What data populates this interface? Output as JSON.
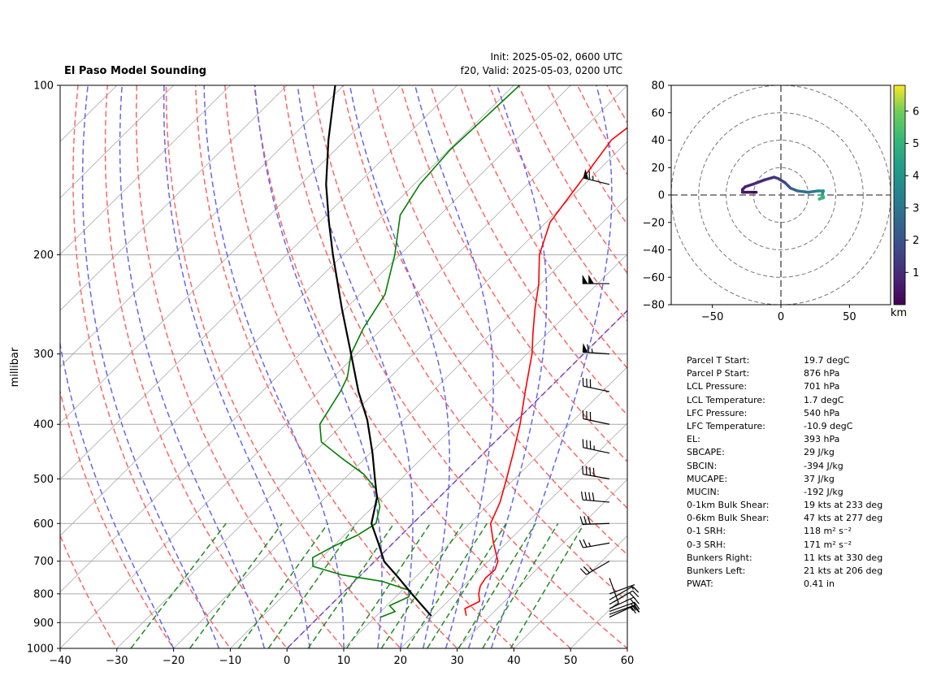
{
  "title_left": "El Paso Model Sounding",
  "title_right_line1": "Init: 2025-05-02, 0600 UTC",
  "title_right_line2": "f20, Valid: 2025-05-03, 0200 UTC",
  "colors": {
    "temperature": "#ff0000",
    "dewpoint": "#008000",
    "parcel": "#000000",
    "dry_adiabats": "#ff6666",
    "moist_adiabats": "#6666ee",
    "mixing_ratio": "#228b22",
    "isotherms": "#aaaaaa",
    "zero_isotherm": "#7d3fbf"
  },
  "chart_data": [
    {
      "type": "line",
      "kind": "skew-t log-p diagram",
      "ylabel": "millibar",
      "xlabel": "",
      "xlim": [
        -40,
        60
      ],
      "ylim": [
        1000,
        100
      ],
      "y_scale": "log",
      "x_ticks": [
        "−40",
        "−30",
        "−20",
        "−10",
        "0",
        "10",
        "20",
        "30",
        "40",
        "50",
        "60"
      ],
      "y_ticks": [
        "100",
        "200",
        "300",
        "400",
        "500",
        "600",
        "700",
        "800",
        "900",
        "1000"
      ],
      "grid": true,
      "series": [
        {
          "role": "temperature",
          "points": [
            [
              875,
              25.8
            ],
            [
              850,
              24.3
            ],
            [
              825,
              25.6
            ],
            [
              800,
              24.1
            ],
            [
              775,
              23.0
            ],
            [
              750,
              22.5
            ],
            [
              725,
              22.7
            ],
            [
              700,
              21.7
            ],
            [
              650,
              17.7
            ],
            [
              600,
              13.7
            ],
            [
              550,
              11.6
            ],
            [
              500,
              8.6
            ],
            [
              450,
              5.2
            ],
            [
              400,
              1.3
            ],
            [
              350,
              -3.6
            ],
            [
              300,
              -9.1
            ],
            [
              275,
              -12.7
            ],
            [
              250,
              -16.5
            ],
            [
              225,
              -20.4
            ],
            [
              200,
              -25.4
            ],
            [
              175,
              -29.3
            ],
            [
              150,
              -31.0
            ],
            [
              125,
              -33.1
            ],
            [
              100,
              -30.2
            ]
          ]
        },
        {
          "role": "dewpoint",
          "points": [
            [
              880,
              11.0
            ],
            [
              860,
              12.5
            ],
            [
              840,
              10.5
            ],
            [
              810,
              12.3
            ],
            [
              790,
              11.6
            ],
            [
              760,
              4.8
            ],
            [
              740,
              -3.5
            ],
            [
              715,
              -10.0
            ],
            [
              690,
              -11.6
            ],
            [
              660,
              -10.0
            ],
            [
              630,
              -7.7
            ],
            [
              600,
              -6.5
            ],
            [
              560,
              -8.8
            ],
            [
              520,
              -12.8
            ],
            [
              490,
              -17.5
            ],
            [
              460,
              -24.0
            ],
            [
              430,
              -30.6
            ],
            [
              400,
              -34.0
            ],
            [
              350,
              -36.2
            ],
            [
              330,
              -37.5
            ],
            [
              300,
              -41.0
            ],
            [
              270,
              -43.4
            ],
            [
              235,
              -45.6
            ],
            [
              200,
              -50.9
            ],
            [
              170,
              -57.0
            ],
            [
              150,
              -59.0
            ],
            [
              130,
              -59.8
            ],
            [
              115,
              -59.4
            ],
            [
              100,
              -59.0
            ]
          ]
        },
        {
          "role": "parcel",
          "points": [
            [
              876,
              19.7
            ],
            [
              800,
              12.3
            ],
            [
              750,
              7.2
            ],
            [
              701,
              1.7
            ],
            [
              650,
              -2.6
            ],
            [
              600,
              -7.3
            ],
            [
              540,
              -10.9
            ],
            [
              500,
              -14.6
            ],
            [
              450,
              -19.6
            ],
            [
              393,
              -26.4
            ],
            [
              350,
              -33.0
            ],
            [
              300,
              -41.0
            ],
            [
              250,
              -50.5
            ],
            [
              200,
              -61.8
            ],
            [
              175,
              -68.3
            ],
            [
              150,
              -75.5
            ],
            [
              125,
              -83.0
            ],
            [
              100,
              -91.5
            ]
          ]
        }
      ],
      "wind_barbs": [
        {
          "p": 880,
          "speed_kts": 15,
          "dir_deg": 65
        },
        {
          "p": 870,
          "speed_kts": 20,
          "dir_deg": 70
        },
        {
          "p": 860,
          "speed_kts": 20,
          "dir_deg": 70
        },
        {
          "p": 850,
          "speed_kts": 20,
          "dir_deg": 65
        },
        {
          "p": 835,
          "speed_kts": 20,
          "dir_deg": 60
        },
        {
          "p": 820,
          "speed_kts": 10,
          "dir_deg": 60
        },
        {
          "p": 800,
          "speed_kts": 5,
          "dir_deg": 70
        },
        {
          "p": 750,
          "speed_kts": 15,
          "dir_deg": 160
        },
        {
          "p": 700,
          "speed_kts": 25,
          "dir_deg": 240
        },
        {
          "p": 650,
          "speed_kts": 25,
          "dir_deg": 260
        },
        {
          "p": 600,
          "speed_kts": 30,
          "dir_deg": 268
        },
        {
          "p": 550,
          "speed_kts": 40,
          "dir_deg": 275
        },
        {
          "p": 500,
          "speed_kts": 40,
          "dir_deg": 280
        },
        {
          "p": 450,
          "speed_kts": 35,
          "dir_deg": 282
        },
        {
          "p": 400,
          "speed_kts": 30,
          "dir_deg": 282
        },
        {
          "p": 350,
          "speed_kts": 30,
          "dir_deg": 282
        },
        {
          "p": 300,
          "speed_kts": 65,
          "dir_deg": 274
        },
        {
          "p": 225,
          "speed_kts": 100,
          "dir_deg": 270
        },
        {
          "p": 150,
          "speed_kts": 65,
          "dir_deg": 284
        }
      ]
    },
    {
      "type": "line",
      "kind": "hodograph",
      "xlim": [
        -80,
        80
      ],
      "ylim": [
        -80,
        80
      ],
      "x_ticks": [
        "−50",
        "0",
        "50"
      ],
      "y_ticks": [
        "80",
        "60",
        "40",
        "20",
        "0",
        "−20",
        "−40",
        "−60",
        "−80"
      ],
      "rings": [
        20,
        40,
        60,
        80
      ],
      "colorbar_ticks": [
        "1",
        "2",
        "3",
        "4",
        "5",
        "6"
      ],
      "colorbar_label": "km",
      "colorbar_range": [
        0,
        6.8
      ],
      "points": [
        {
          "u": -18,
          "v": 2,
          "h": 0.1
        },
        {
          "u": -22,
          "v": 2,
          "h": 0.3
        },
        {
          "u": -28,
          "v": 2,
          "h": 0.5
        },
        {
          "u": -28,
          "v": 4,
          "h": 0.6
        },
        {
          "u": -26,
          "v": 6,
          "h": 0.7
        },
        {
          "u": -20,
          "v": 8,
          "h": 0.8
        },
        {
          "u": -12,
          "v": 11,
          "h": 0.95
        },
        {
          "u": -5,
          "v": 13,
          "h": 1.1
        },
        {
          "u": -2,
          "v": 12,
          "h": 1.3
        },
        {
          "u": 3,
          "v": 9,
          "h": 1.6
        },
        {
          "u": 7,
          "v": 5,
          "h": 2.0
        },
        {
          "u": 12,
          "v": 3,
          "h": 2.5
        },
        {
          "u": 20,
          "v": 2,
          "h": 3.0
        },
        {
          "u": 27,
          "v": 3,
          "h": 3.4
        },
        {
          "u": 31,
          "v": 3,
          "h": 3.8
        },
        {
          "u": 30,
          "v": 0,
          "h": 4.2
        },
        {
          "u": 31,
          "v": -2,
          "h": 4.6
        },
        {
          "u": 28,
          "v": -3,
          "h": 5.0
        },
        {
          "u": 31,
          "v": -1,
          "h": 5.4
        }
      ]
    }
  ],
  "parameters": [
    {
      "label": "Parcel T Start:",
      "value": "19.7 degC"
    },
    {
      "label": "Parcel P Start:",
      "value": "876 hPa"
    },
    {
      "label": "LCL Pressure:",
      "value": "701 hPa"
    },
    {
      "label": "LCL Temperature:",
      "value": "1.7 degC"
    },
    {
      "label": "LFC Pressure:",
      "value": "540 hPa"
    },
    {
      "label": "LFC Temperature:",
      "value": "-10.9 degC"
    },
    {
      "label": "EL:",
      "value": "393 hPa"
    },
    {
      "label": "SBCAPE:",
      "value": "29 J/kg"
    },
    {
      "label": "SBCIN:",
      "value": "-394 J/kg"
    },
    {
      "label": "MUCAPE:",
      "value": "37 J/kg"
    },
    {
      "label": "MUCIN:",
      "value": "-192 J/kg"
    },
    {
      "label": "0-1km Bulk Shear:",
      "value": "19 kts at 233 deg"
    },
    {
      "label": "0-6km Bulk Shear:",
      "value": "47 kts at 277 deg"
    },
    {
      "label": "0-1 SRH:",
      "value": "118 m² s⁻²"
    },
    {
      "label": "0-3 SRH:",
      "value": "171 m² s⁻²"
    },
    {
      "label": "Bunkers Right:",
      "value": "11 kts at 330 deg"
    },
    {
      "label": "Bunkers Left:",
      "value": "21 kts at 206 deg"
    },
    {
      "label": "PWAT:",
      "value": "0.41 in"
    }
  ]
}
